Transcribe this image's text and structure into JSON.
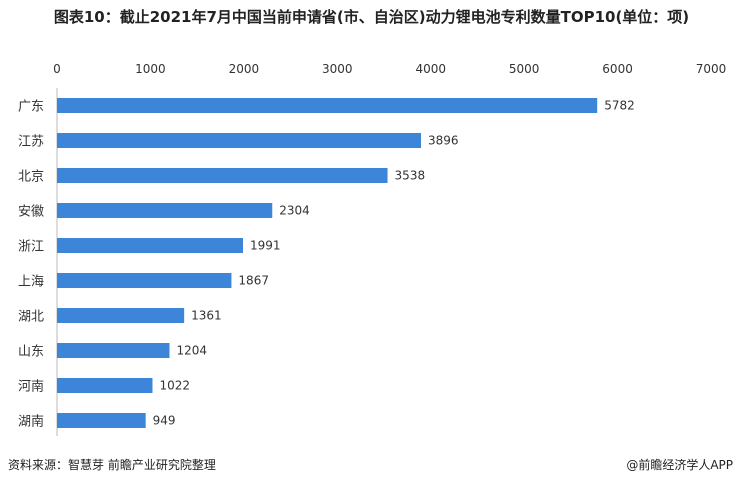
{
  "title": "图表10：截止2021年7月中国当前申请省(市、自治区)动力锂电池专利数量TOP10(单位：项)",
  "source": "资料来源：智慧芽 前瞻产业研究院整理",
  "brand": "@前瞻经济学人APP",
  "chart_data": {
    "type": "bar",
    "orientation": "horizontal",
    "title": "图表10：截止2021年7月中国当前申请省(市、自治区)动力锂电池专利数量TOP10(单位：项)",
    "categories": [
      "广东",
      "江苏",
      "北京",
      "安徽",
      "浙江",
      "上海",
      "湖北",
      "山东",
      "河南",
      "湖南"
    ],
    "values": [
      5782,
      3896,
      3538,
      2304,
      1991,
      1867,
      1361,
      1204,
      1022,
      949
    ],
    "xlim": [
      0,
      7000
    ],
    "xticks": [
      0,
      1000,
      2000,
      3000,
      4000,
      5000,
      6000,
      7000
    ],
    "tick_labels": [
      "0",
      "1000",
      "2000",
      "3000",
      "4000",
      "5000",
      "6000",
      "7000"
    ],
    "value_labels": [
      "5782",
      "3896",
      "3538",
      "2304",
      "1991",
      "1867",
      "1361",
      "1204",
      "1022",
      "949"
    ],
    "x_axis_position": "top",
    "bar_color": "#3d85d8",
    "grid": false,
    "legend": "none"
  }
}
